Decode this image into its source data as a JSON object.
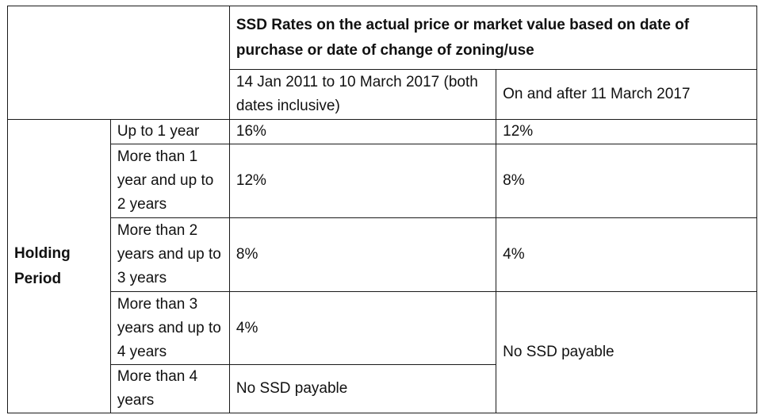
{
  "table": {
    "main_header": "SSD Rates on the actual price or market value based on date of purchase or date of change of zoning/use",
    "col_period_1": "14 Jan 2011 to 10 March 2017 (both dates inclusive)",
    "col_period_2": "On and after 11 March 2017",
    "row_group_label": "Holding Period",
    "rows": [
      {
        "period": "Up to 1 year",
        "rate_1": "16%",
        "rate_2": "12%"
      },
      {
        "period": "More than 1 year and up to 2 years",
        "rate_1": "12%",
        "rate_2": "8%"
      },
      {
        "period": "More than 2 years and up to 3 years",
        "rate_1": "8%",
        "rate_2": "4%"
      },
      {
        "period": "More than 3 years and up to 4 years",
        "rate_1": "4%",
        "rate_2": "No SSD payable"
      },
      {
        "period": "More than 4 years",
        "rate_1": "No SSD payable"
      }
    ]
  }
}
